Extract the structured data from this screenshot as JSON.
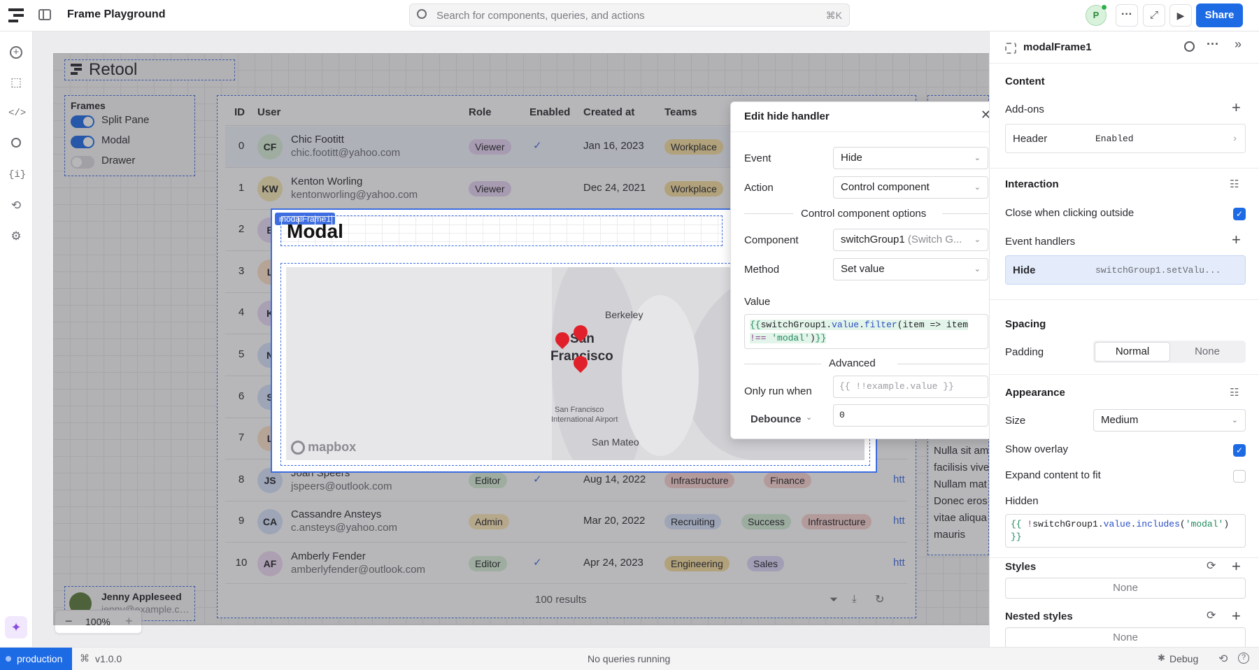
{
  "topbar": {
    "app_title": "Frame Playground",
    "search_placeholder": "Search for components, queries, and actions",
    "search_shortcut": "⌘K",
    "avatar_initial": "P",
    "share_label": "Share"
  },
  "canvas": {
    "logo_text": "Retool",
    "zoom": "100%",
    "frames_title": "Frames",
    "frames": [
      {
        "label": "Split Pane",
        "on": true
      },
      {
        "label": "Modal",
        "on": true
      },
      {
        "label": "Drawer",
        "on": false
      }
    ],
    "user_name": "Jenny Appleseed",
    "user_email": "jenny@example.com"
  },
  "table": {
    "headers": [
      "ID",
      "User",
      "Role",
      "Enabled",
      "Created at",
      "Teams"
    ],
    "rows": [
      {
        "id": "0",
        "initials": "CF",
        "name": "Chic Footitt",
        "email": "chic.footitt@yahoo.com",
        "role": "Viewer",
        "enabled": true,
        "created": "Jan 16, 2023",
        "teams": [
          "Workplace"
        ]
      },
      {
        "id": "1",
        "initials": "KW",
        "name": "Kenton Worling",
        "email": "kentonworling@yahoo.com",
        "role": "Viewer",
        "enabled": false,
        "created": "Dec 24, 2021",
        "teams": [
          "Workplace"
        ]
      },
      {
        "id": "2",
        "initials": "E",
        "name": "",
        "email": "",
        "role": "",
        "enabled": false,
        "created": "",
        "teams": []
      },
      {
        "id": "3",
        "initials": "L",
        "name": "",
        "email": "",
        "role": "",
        "enabled": false,
        "created": "",
        "teams": []
      },
      {
        "id": "4",
        "initials": "K",
        "name": "",
        "email": "",
        "role": "",
        "enabled": false,
        "created": "",
        "teams": []
      },
      {
        "id": "5",
        "initials": "N",
        "name": "",
        "email": "",
        "role": "",
        "enabled": false,
        "created": "",
        "teams": []
      },
      {
        "id": "6",
        "initials": "S",
        "name": "",
        "email": "",
        "role": "",
        "enabled": false,
        "created": "",
        "teams": []
      },
      {
        "id": "7",
        "initials": "L",
        "name": "",
        "email": "",
        "role": "",
        "enabled": false,
        "created": "",
        "teams": []
      },
      {
        "id": "8",
        "initials": "JS",
        "name": "Joan Speers",
        "email": "jspeers@outlook.com",
        "role": "Editor",
        "enabled": true,
        "created": "Aug 14, 2022",
        "teams": [
          "Infrastructure",
          "Finance"
        ]
      },
      {
        "id": "9",
        "initials": "CA",
        "name": "Cassandre Ansteys",
        "email": "c.ansteys@yahoo.com",
        "role": "Admin",
        "enabled": false,
        "created": "Mar 20, 2022",
        "teams": [
          "Recruiting",
          "Success",
          "Infrastructure"
        ]
      },
      {
        "id": "10",
        "initials": "AF",
        "name": "Amberly Fender",
        "email": "amberlyfender@outlook.com",
        "role": "Editor",
        "enabled": true,
        "created": "Apr 24, 2023",
        "teams": [
          "Engineering",
          "Sales"
        ]
      }
    ],
    "link_text": "htt",
    "results": "100 results"
  },
  "side_text": {
    "lines": [
      "Nulla sit am",
      "facilisis vive",
      "Nullam mat",
      "Donec eros",
      "vitae aliqua",
      "mauris"
    ]
  },
  "modal": {
    "badge": "modalFrame1",
    "title": "Modal",
    "map_labels": [
      "Berkeley",
      "San",
      "Francisco",
      "San Francisco",
      "International Airport",
      "San Mateo"
    ],
    "mapbox_label": "mapbox"
  },
  "handler": {
    "title": "Edit hide handler",
    "event_label": "Event",
    "event_value": "Hide",
    "action_label": "Action",
    "action_value": "Control component",
    "options_title": "Control component options",
    "component_label": "Component",
    "component_value": "switchGroup1",
    "component_hint": "(Switch G...",
    "method_label": "Method",
    "method_value": "Set value",
    "value_label": "Value",
    "value_code": {
      "open": "{{",
      "obj": "switchGroup1",
      "dot1": ".",
      "prop": "value",
      "dot2": ".",
      "fn": "filter",
      "rest": "(item => item",
      "line2_op": "!== ",
      "line2_str": "'modal'",
      "line2_end": ")",
      "close": "}}"
    },
    "advanced_title": "Advanced",
    "only_run_label": "Only run when",
    "only_run_placeholder": "{{ !!example.value }}",
    "debounce_label": "Debounce",
    "debounce_value": "0"
  },
  "panel": {
    "component_name": "modalFrame1",
    "content_title": "Content",
    "addons_label": "Add-ons",
    "header_row": {
      "label": "Header",
      "value": "Enabled"
    },
    "interaction_title": "Interaction",
    "close_outside_label": "Close when clicking outside",
    "close_outside_checked": true,
    "event_handlers_label": "Event handlers",
    "handler_row": {
      "label": "Hide",
      "value": "switchGroup1.setValu..."
    },
    "spacing_title": "Spacing",
    "padding_label": "Padding",
    "padding_options": [
      "Normal",
      "None"
    ],
    "appearance_title": "Appearance",
    "size_label": "Size",
    "size_value": "Medium",
    "overlay_label": "Show overlay",
    "overlay_checked": true,
    "expand_label": "Expand content to fit",
    "expand_checked": false,
    "hidden_label": "Hidden",
    "hidden_code": {
      "open": "{{ ",
      "op": "!",
      "obj": "switchGroup1",
      "dot1": ".",
      "prop": "value",
      "dot2": ".",
      "fn": "includes",
      "paren": "(",
      "str": "'modal'",
      "close_paren": ")",
      "close": "}}"
    },
    "styles_label": "Styles",
    "styles_value": "None",
    "nested_label": "Nested styles",
    "nested_value": "None"
  },
  "status": {
    "env": "production",
    "version": "v1.0.0",
    "queries": "No queries running",
    "debug": "Debug"
  },
  "colors": {
    "accent": "#1d6ae5",
    "viewer": "#e7d4f3",
    "editor": "#d8f0d6",
    "admin": "#fde8b8",
    "workplace": "#f6dfa0",
    "infrastructure": "#fbd3d0",
    "finance": "#fbd3d0",
    "recruiting": "#d6e3fb",
    "success": "#d5efd8",
    "engineering": "#f6dfa0",
    "sales": "#ddd8fb"
  }
}
